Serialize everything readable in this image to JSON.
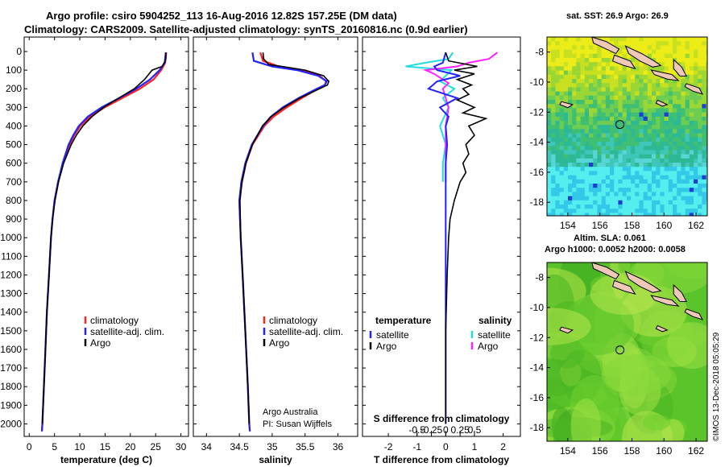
{
  "header": {
    "line1": "Argo profile: csiro 5904252_113 16-Aug-2016 12.82S 157.25E (DM data)",
    "line2": "Climatology: CARS2009. Satellite-adjusted climatology: synTS_20160816.nc (0.9d earlier)"
  },
  "footer": {
    "attribution1": "Argo Australia",
    "attribution2": "PI: Susan Wijffels",
    "credit": "©IMOS 13-Dec-2018 05:05:29"
  },
  "colors": {
    "climatology": "#ff2222",
    "satellite": "#2222ff",
    "argo": "#000000",
    "salinity_satellite": "#22dddd",
    "salinity_argo": "#ff22ff"
  },
  "depth_axis": {
    "range": [
      0,
      2050
    ],
    "ticks": [
      0,
      100,
      200,
      300,
      400,
      500,
      600,
      700,
      800,
      900,
      1000,
      1100,
      1200,
      1300,
      1400,
      1500,
      1600,
      1700,
      1800,
      1900,
      2000
    ]
  },
  "chart_data": [
    {
      "id": "temperature",
      "type": "line",
      "xlabel": "temperature (deg C)",
      "xlim": [
        -1,
        31.5
      ],
      "xticks": [
        0,
        5,
        10,
        15,
        20,
        25,
        30
      ],
      "xticklabels": [
        "0",
        "5",
        "10",
        "15",
        "20",
        "25",
        "30"
      ],
      "legend": [
        "climatology",
        "satellite-adj. clim.",
        "Argo"
      ],
      "series": [
        {
          "name": "climatology",
          "color": "#ff2222",
          "depth": [
            5,
            60,
            100,
            150,
            200,
            250,
            300,
            350,
            400,
            450,
            500,
            600,
            700,
            800,
            900,
            1000,
            1200,
            1400,
            1600,
            1800,
            2000,
            2040
          ],
          "values": [
            27.1,
            26.9,
            26.1,
            24.6,
            21.9,
            18.4,
            14.9,
            12.1,
            10.1,
            8.9,
            8.0,
            6.7,
            5.7,
            5.0,
            4.6,
            4.3,
            3.9,
            3.5,
            3.2,
            2.9,
            2.6,
            2.5
          ]
        },
        {
          "name": "satellite-adj. clim.",
          "color": "#2222ff",
          "depth": [
            5,
            60,
            100,
            150,
            200,
            250,
            300,
            350,
            400,
            450,
            500,
            600,
            700,
            800,
            900,
            1000,
            1200,
            1400,
            1600,
            1800,
            2000,
            2040
          ],
          "values": [
            27.0,
            26.8,
            25.8,
            23.9,
            21.2,
            17.8,
            14.3,
            11.6,
            9.8,
            8.7,
            7.8,
            6.6,
            5.7,
            5.0,
            4.6,
            4.3,
            3.9,
            3.5,
            3.2,
            2.9,
            2.6,
            2.5
          ]
        },
        {
          "name": "Argo",
          "color": "#000000",
          "depth": [
            5,
            40,
            60,
            80,
            100,
            150,
            200,
            250,
            300,
            350,
            400,
            450,
            500,
            600,
            700,
            800,
            900,
            1000,
            1200,
            1400,
            1600,
            1800,
            2000
          ],
          "values": [
            27.0,
            27.0,
            26.7,
            26.3,
            24.3,
            22.8,
            20.8,
            17.7,
            14.7,
            12.4,
            10.6,
            9.3,
            8.3,
            6.8,
            5.8,
            5.1,
            4.6,
            4.3,
            3.9,
            3.5,
            3.2,
            2.9,
            2.6
          ]
        }
      ]
    },
    {
      "id": "salinity",
      "type": "line",
      "xlabel": "salinity",
      "xlim": [
        33.8,
        36.3
      ],
      "xticks": [
        34,
        34.5,
        35,
        35.5,
        36
      ],
      "xticklabels": [
        "34",
        "34.5",
        "35",
        "35.5",
        "36"
      ],
      "legend": [
        "climatology",
        "satellite-adj. clim.",
        "Argo"
      ],
      "series": [
        {
          "name": "climatology",
          "color": "#ff2222",
          "depth": [
            5,
            50,
            80,
            100,
            130,
            160,
            180,
            200,
            250,
            300,
            350,
            400,
            500,
            600,
            700,
            800,
            1000,
            1200,
            1500,
            1800,
            2000,
            2040
          ],
          "values": [
            34.82,
            34.86,
            35.1,
            35.45,
            35.72,
            35.82,
            35.8,
            35.7,
            35.45,
            35.22,
            35.02,
            34.88,
            34.7,
            34.6,
            34.54,
            34.5,
            34.52,
            34.55,
            34.59,
            34.63,
            34.65,
            34.66
          ]
        },
        {
          "name": "satellite-adj. clim.",
          "color": "#2222ff",
          "depth": [
            5,
            50,
            80,
            100,
            130,
            160,
            180,
            200,
            250,
            300,
            350,
            400,
            500,
            600,
            700,
            800,
            1000,
            1200,
            1500,
            1800,
            2000,
            2040
          ],
          "values": [
            34.7,
            34.72,
            35.0,
            35.38,
            35.7,
            35.83,
            35.8,
            35.68,
            35.4,
            35.16,
            34.98,
            34.86,
            34.69,
            34.59,
            34.53,
            34.5,
            34.52,
            34.55,
            34.59,
            34.63,
            34.65,
            34.66
          ]
        },
        {
          "name": "Argo",
          "color": "#000000",
          "depth": [
            5,
            40,
            70,
            80,
            100,
            130,
            160,
            180,
            200,
            250,
            300,
            350,
            400,
            500,
            600,
            700,
            800,
            1000,
            1200,
            1500,
            1800,
            2000
          ],
          "values": [
            34.86,
            34.87,
            34.95,
            35.15,
            35.5,
            35.78,
            35.86,
            35.84,
            35.72,
            35.42,
            35.18,
            34.98,
            34.85,
            34.7,
            34.6,
            34.54,
            34.51,
            34.52,
            34.55,
            34.59,
            34.63,
            34.65
          ]
        }
      ]
    },
    {
      "id": "difference",
      "type": "line",
      "xlabel": "T difference from climatology",
      "xlabel_top": "S difference from climatology",
      "xlim": [
        -2.9,
        2.6
      ],
      "xticks": [
        -2,
        -1,
        0,
        1,
        2
      ],
      "xticklabels": [
        "-2",
        "-1",
        "0",
        "1",
        "2"
      ],
      "top_ticks": [
        -1,
        -0.5,
        0,
        0.5,
        1
      ],
      "top_ticklabels": [
        "-0.5",
        "-0.25",
        "0",
        "0.25",
        "0.5"
      ],
      "legend_left_title": "temperature",
      "legend_right_title": "salinity",
      "legend_left": [
        "satellite",
        "Argo"
      ],
      "legend_right": [
        "satellite",
        "Argo"
      ],
      "series": [
        {
          "name": "T satellite",
          "color": "#2222ff",
          "depth": [
            5,
            60,
            80,
            100,
            130,
            160,
            200,
            250,
            300,
            350,
            400,
            500,
            600,
            700,
            800,
            1000,
            1500,
            2000
          ],
          "values": [
            0.0,
            -0.1,
            -0.4,
            -0.3,
            0.5,
            -0.3,
            -0.6,
            0.4,
            -0.2,
            0.1,
            0.0,
            0.05,
            0.0,
            0.0,
            0.0,
            0.0,
            0.0,
            0.0
          ]
        },
        {
          "name": "T Argo",
          "color": "#000000",
          "depth": [
            5,
            50,
            80,
            100,
            120,
            150,
            180,
            200,
            230,
            260,
            300,
            330,
            360,
            400,
            450,
            500,
            550,
            600,
            650,
            700,
            750,
            800,
            900,
            1000,
            1200,
            1500,
            1800,
            2000
          ],
          "values": [
            0.0,
            0.1,
            1.1,
            0.3,
            1.0,
            0.4,
            0.9,
            0.6,
            0.8,
            0.4,
            1.0,
            0.6,
            1.4,
            0.8,
            1.0,
            0.7,
            0.8,
            0.6,
            0.7,
            0.5,
            0.4,
            0.3,
            0.15,
            0.1,
            0.05,
            0.0,
            0.0,
            0.0
          ]
        },
        {
          "name": "S satellite",
          "color": "#22dddd",
          "depth": [
            5,
            40,
            60,
            80,
            100,
            130,
            160,
            200,
            250,
            300,
            400,
            500,
            600,
            700
          ],
          "values": [
            0.25,
            0.1,
            -0.7,
            -1.4,
            0.2,
            0.0,
            -0.2,
            0.3,
            -0.1,
            0.1,
            -0.2,
            0.0,
            -0.1,
            -0.1
          ]
        },
        {
          "name": "S Argo",
          "color": "#ff22ff",
          "depth": [
            5,
            40,
            60,
            80,
            100,
            120,
            140,
            170,
            200,
            250,
            300,
            400,
            500,
            600,
            700
          ],
          "values": [
            1.8,
            1.5,
            0.8,
            0.4,
            -0.7,
            -0.4,
            -0.2,
            0.1,
            -0.1,
            0.0,
            0.1,
            0.0,
            0.0,
            0.0,
            0.0
          ]
        }
      ]
    },
    {
      "id": "sst_map",
      "type": "heatmap",
      "title": "sat. SST: 26.9 Argo: 26.9",
      "xlim": [
        152.7,
        162.7
      ],
      "ylim": [
        -18.9,
        -7.0
      ],
      "xticks": [
        154,
        156,
        158,
        160,
        162
      ],
      "xticklabels": [
        "154",
        "156",
        "158",
        "160",
        "162"
      ],
      "yticks": [
        -8,
        -10,
        -12,
        -14,
        -16,
        -18
      ],
      "yticklabels": [
        "-8",
        "-10",
        "-12",
        "-14",
        "-16",
        "-18"
      ],
      "float_position": [
        157.25,
        -12.82
      ],
      "palette": [
        "#ecec18",
        "#c8e020",
        "#9ad634",
        "#6ccd52",
        "#3fbf72",
        "#2db896",
        "#3ec7b8",
        "#58d5d5",
        "#55eeee",
        "#33c8e8"
      ]
    },
    {
      "id": "sla_map",
      "type": "heatmap",
      "title1": "Altim. SLA: 0.061",
      "title2": "Argo h1000: 0.0052 h2000: 0.0058",
      "xlim": [
        152.7,
        162.7
      ],
      "ylim": [
        -18.9,
        -7.0
      ],
      "xticks": [
        154,
        156,
        158,
        160,
        162
      ],
      "xticklabels": [
        "154",
        "156",
        "158",
        "160",
        "162"
      ],
      "yticks": [
        -8,
        -10,
        -12,
        -14,
        -16,
        -18
      ],
      "yticklabels": [
        "-8",
        "-10",
        "-12",
        "-14",
        "-16",
        "-18"
      ],
      "float_position": [
        157.25,
        -12.82
      ],
      "palette": [
        "#3aa81e",
        "#4bb622",
        "#5bc42a",
        "#70cf30",
        "#86d83a",
        "#9fe044",
        "#b6e64c"
      ]
    }
  ]
}
